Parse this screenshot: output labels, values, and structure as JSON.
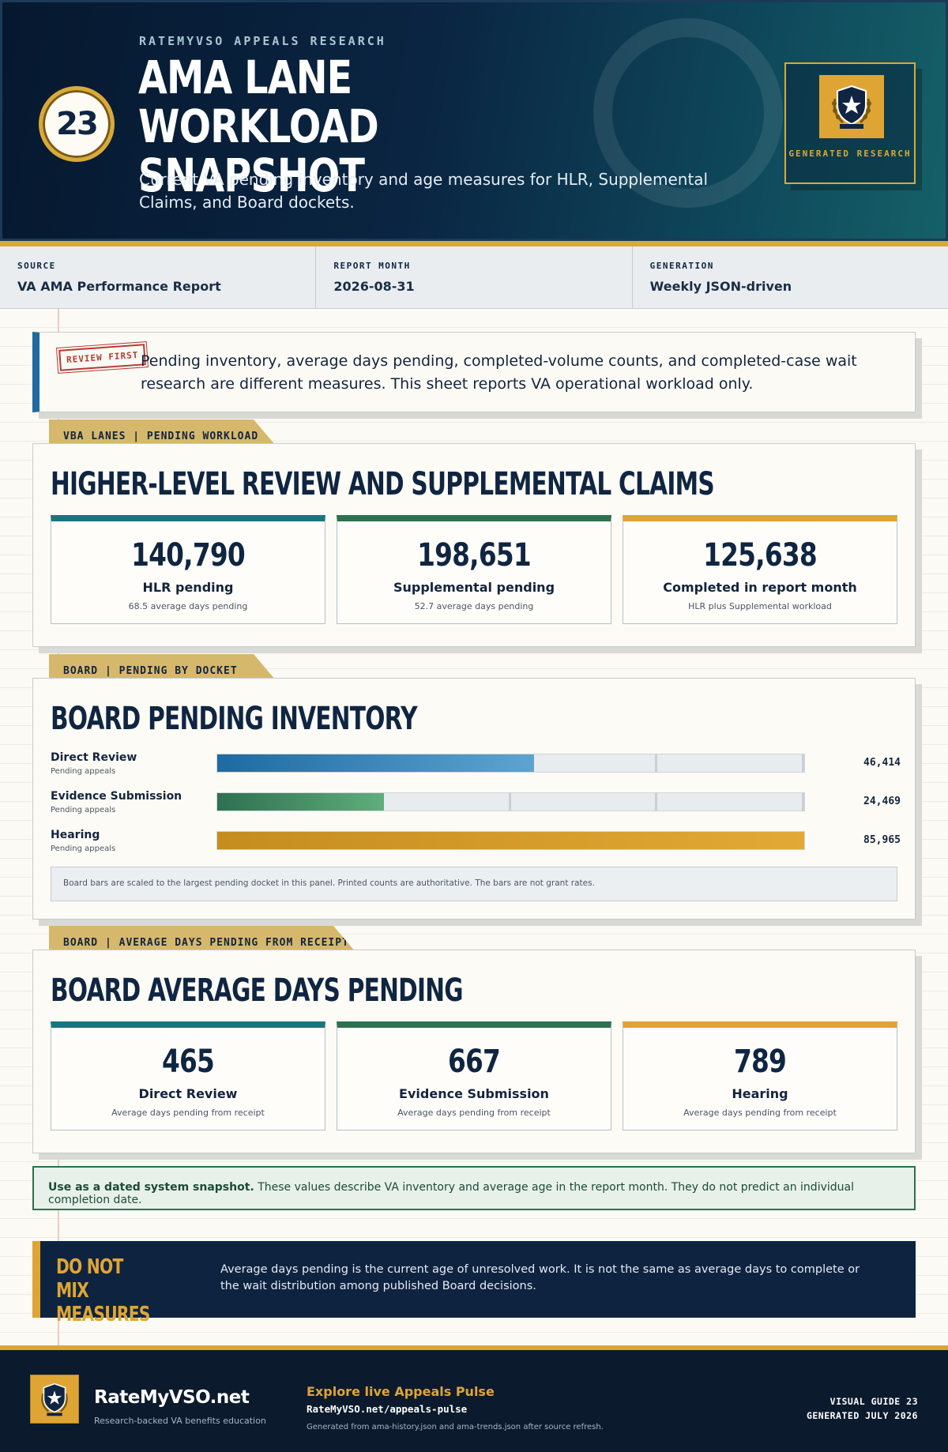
{
  "header": {
    "badge_number": "23",
    "kicker": "RATEMYVSO APPEALS RESEARCH",
    "title": "AMA LANE WORKLOAD SNAPSHOT",
    "subtitle": "Current VA pending inventory and age measures for HLR, Supplemental Claims, and Board dockets.",
    "seal_label": "GENERATED RESEARCH",
    "seal_icon": "shield-star-laurel-icon"
  },
  "meta": [
    {
      "label": "SOURCE",
      "value": "VA AMA Performance Report"
    },
    {
      "label": "REPORT MONTH",
      "value": "2026-08-31"
    },
    {
      "label": "GENERATION",
      "value": "Weekly JSON-driven"
    }
  ],
  "review": {
    "stamp": "REVIEW FIRST",
    "text": "Pending inventory, average days pending, completed-volume counts, and completed-case wait research are different measures. This sheet reports VA operational workload only."
  },
  "vba": {
    "tab": "VBA LANES | PENDING WORKLOAD",
    "heading": "HIGHER-LEVEL REVIEW AND SUPPLEMENTAL CLAIMS",
    "stats": [
      {
        "value": "140,790",
        "label": "HLR pending",
        "sub": "68.5 average days pending",
        "accent": "#1a7580"
      },
      {
        "value": "198,651",
        "label": "Supplemental pending",
        "sub": "52.7 average days pending",
        "accent": "#2e7050"
      },
      {
        "value": "125,638",
        "label": "Completed in report month",
        "sub": "HLR plus Supplemental workload",
        "accent": "#dfa534"
      }
    ]
  },
  "board_pending": {
    "tab": "BOARD | PENDING BY DOCKET",
    "heading": "BOARD PENDING INVENTORY",
    "note": "Board bars are scaled to the largest pending docket in this panel. Printed counts are authoritative. The bars are not grant rates."
  },
  "chart_data": {
    "type": "bar",
    "orientation": "horizontal",
    "categories": [
      "Direct Review",
      "Evidence Submission",
      "Hearing"
    ],
    "category_captions": [
      "Pending appeals",
      "Pending appeals",
      "Pending appeals"
    ],
    "values": [
      46414,
      24469,
      85965
    ],
    "value_labels": [
      "46,414",
      "24,469",
      "85,965"
    ],
    "colors": [
      "#1e6aa1",
      "#2e7050",
      "#c48d1e"
    ],
    "xlim": [
      0,
      85965
    ],
    "grid": false
  },
  "board_days": {
    "tab": "BOARD | AVERAGE DAYS PENDING FROM RECEIPT",
    "heading": "BOARD AVERAGE DAYS PENDING",
    "stats": [
      {
        "value": "465",
        "label": "Direct Review",
        "sub": "Average days pending from receipt",
        "accent": "#1a7580"
      },
      {
        "value": "667",
        "label": "Evidence Submission",
        "sub": "Average days pending from receipt",
        "accent": "#2e7050"
      },
      {
        "value": "789",
        "label": "Hearing",
        "sub": "Average days pending from receipt",
        "accent": "#dfa534"
      }
    ]
  },
  "snapshot": {
    "bold": "Use as a dated system snapshot.",
    "text": " These values describe VA inventory and average age in the report month. They do not predict an individual completion date."
  },
  "do_not_mix": {
    "heading": "DO NOT MIX MEASURES",
    "body": "Average days pending is the current age of unresolved work. It is not the same as average days to complete or the wait distribution among published Board decisions."
  },
  "footer": {
    "brand": "RateMyVSO.net",
    "tagline": "Research-backed VA benefits education",
    "explore": "Explore live Appeals Pulse",
    "url": "RateMyVSO.net/appeals-pulse",
    "generated_from": "Generated from ama-history.json and ama-trends.json after source refresh.",
    "guide": "VISUAL GUIDE 23",
    "generated_date": "GENERATED JULY 2026"
  }
}
